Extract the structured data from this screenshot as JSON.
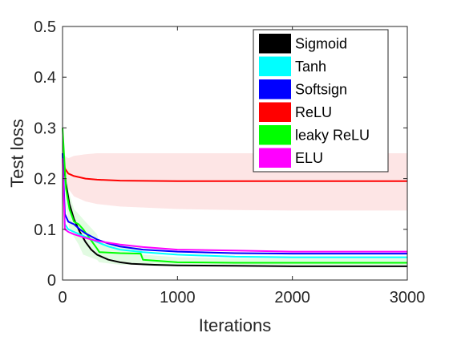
{
  "chart_data": {
    "type": "line",
    "title": "",
    "xlabel": "Iterations",
    "ylabel": "Test loss",
    "xlim": [
      0,
      3000
    ],
    "ylim": [
      0,
      0.5
    ],
    "xticks": [
      0,
      1000,
      2000,
      3000
    ],
    "yticks": [
      0,
      0.1,
      0.2,
      0.3,
      0.4,
      0.5
    ],
    "xtick_labels": [
      "0",
      "1000",
      "2000",
      "3000"
    ],
    "ytick_labels": [
      "0",
      "0.1",
      "0.2",
      "0.3",
      "0.4",
      "0.5"
    ],
    "grid": false,
    "legend_position": "top-right",
    "series": [
      {
        "name": "Sigmoid",
        "color": "#000000",
        "x": [
          0,
          30,
          60,
          100,
          150,
          200,
          250,
          300,
          400,
          500,
          600,
          800,
          1000,
          1500,
          2000,
          2500,
          3000
        ],
        "y": [
          0.25,
          0.19,
          0.15,
          0.12,
          0.095,
          0.075,
          0.06,
          0.05,
          0.04,
          0.035,
          0.032,
          0.03,
          0.029,
          0.028,
          0.027,
          0.027,
          0.027
        ]
      },
      {
        "name": "Tanh",
        "color": "#00ffff",
        "x": [
          0,
          20,
          50,
          100,
          200,
          300,
          400,
          500,
          700,
          1000,
          1500,
          2000,
          2500,
          3000
        ],
        "y": [
          0.25,
          0.11,
          0.1,
          0.095,
          0.085,
          0.075,
          0.066,
          0.06,
          0.055,
          0.05,
          0.046,
          0.045,
          0.045,
          0.045
        ]
      },
      {
        "name": "Softsign",
        "color": "#0000ff",
        "x": [
          0,
          20,
          50,
          100,
          150,
          200,
          300,
          400,
          500,
          700,
          1000,
          1500,
          2000,
          2500,
          3000
        ],
        "y": [
          0.25,
          0.13,
          0.115,
          0.11,
          0.1,
          0.092,
          0.08,
          0.072,
          0.066,
          0.06,
          0.056,
          0.053,
          0.052,
          0.052,
          0.052
        ]
      },
      {
        "name": "ReLU",
        "color": "#ff0000",
        "band_color": "#fde5e5",
        "x": [
          0,
          20,
          50,
          100,
          200,
          300,
          500,
          1000,
          1500,
          2000,
          2500,
          3000
        ],
        "y": [
          0.25,
          0.22,
          0.21,
          0.205,
          0.2,
          0.198,
          0.196,
          0.195,
          0.195,
          0.195,
          0.195,
          0.195
        ],
        "lower": [
          0.24,
          0.195,
          0.18,
          0.165,
          0.155,
          0.15,
          0.145,
          0.14,
          0.138,
          0.137,
          0.137,
          0.137
        ],
        "upper": [
          0.26,
          0.245,
          0.24,
          0.245,
          0.248,
          0.25,
          0.25,
          0.25,
          0.25,
          0.25,
          0.25,
          0.25
        ]
      },
      {
        "name": "leaky ReLU",
        "color": "#00ff00",
        "band_color": "#e2fbe2",
        "x": [
          0,
          30,
          60,
          100,
          140,
          180,
          300,
          320,
          500,
          680,
          700,
          1000,
          1500,
          2000,
          2500,
          3000
        ],
        "y": [
          0.3,
          0.18,
          0.14,
          0.115,
          0.11,
          0.1,
          0.062,
          0.055,
          0.053,
          0.052,
          0.04,
          0.035,
          0.034,
          0.034,
          0.034,
          0.034
        ],
        "lower": [
          0.28,
          0.15,
          0.1,
          0.085,
          0.07,
          0.05,
          0.04,
          0.035,
          0.03,
          0.03,
          0.028,
          0.027,
          0.027,
          0.027,
          0.027,
          0.027
        ],
        "upper": [
          0.3,
          0.2,
          0.17,
          0.14,
          0.13,
          0.12,
          0.09,
          0.075,
          0.07,
          0.065,
          0.05,
          0.045,
          0.043,
          0.043,
          0.043,
          0.043
        ]
      },
      {
        "name": "ELU",
        "color": "#ff00ff",
        "x": [
          0,
          20,
          50,
          100,
          200,
          300,
          500,
          700,
          1000,
          1500,
          2000,
          2500,
          3000
        ],
        "y": [
          0.24,
          0.1,
          0.095,
          0.09,
          0.083,
          0.077,
          0.07,
          0.065,
          0.06,
          0.058,
          0.056,
          0.056,
          0.056
        ]
      }
    ]
  }
}
